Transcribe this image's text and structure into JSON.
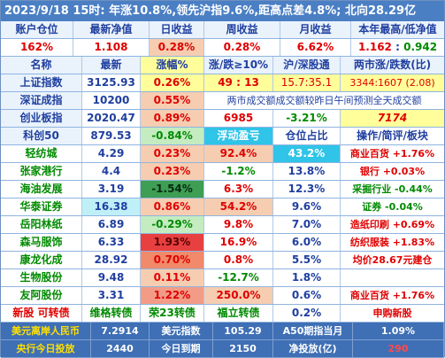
{
  "title": "2023/9/18  15时: 年涨10.8%,领先沪指9.6%,距高点差4.8%; 北向28.29亿",
  "account": {
    "headers": [
      "账户仓位",
      "最新净值",
      "日收益",
      "周收益",
      "月收益",
      "本年最高/低净值"
    ],
    "position": "162%",
    "nav": "1.108",
    "day": "0.28%",
    "week": "0.28%",
    "month": "6.62%",
    "yearhi": "1.162",
    "sep": ":",
    "yearlo": "0.942"
  },
  "index_header": {
    "name": "名称",
    "latest": "最新",
    "pct": "涨幅%",
    "ge10": "涨/跌≥10%",
    "hs": "沪/深股通",
    "twoCity": "两市涨/跌数(比)"
  },
  "sh": {
    "name": "上证指数",
    "latest": "3125.93",
    "pct": "0.26%",
    "ge10_a": "49",
    "ge10_sep": ":",
    "ge10_b": "13",
    "hs": "15.7:35.1",
    "ratio": "3344:1607 (2.08)"
  },
  "sz": {
    "name": "深证成指",
    "latest": "10200",
    "pct": "0.55%",
    "note": "两市成交额成交额较昨日午间预测全天成交额"
  },
  "cy": {
    "name": "创业板指",
    "latest": "2020.47",
    "pct": "0.89%",
    "vol": "6985",
    "chg": "-3.21%",
    "pred": "7174"
  },
  "kc": {
    "name": "科创50",
    "latest": "879.53",
    "pct": "-0.84%"
  },
  "stock_header": {
    "float": "浮动盈亏",
    "weight": "仓位占比",
    "op": "操作/简评/板块"
  },
  "stocks": [
    {
      "name": "轻纺城",
      "price": "4.29",
      "pct": "0.23%",
      "float": "92.4%",
      "weight": "43.2%",
      "note": "商业百货 +1.76%"
    },
    {
      "name": "张家港行",
      "price": "4.4",
      "pct": "0.23%",
      "float": "-1.2%",
      "weight": "13.8%",
      "note": "银行 +0.03%"
    },
    {
      "name": "海油发展",
      "price": "3.19",
      "pct": "-1.54%",
      "float": "6.3%",
      "weight": "12.3%",
      "note": "采掘行业 -0.44%"
    },
    {
      "name": "华泰证券",
      "price": "16.38",
      "pct": "0.86%",
      "float": "54.2%",
      "weight": "9.6%",
      "note": "证券 -0.04%"
    },
    {
      "name": "岳阳林纸",
      "price": "6.89",
      "pct": "-0.29%",
      "float": "9.8%",
      "weight": "7.0%",
      "note": "造纸印刷 +0.69%"
    },
    {
      "name": "森马服饰",
      "price": "6.33",
      "pct": "1.93%",
      "float": "16.9%",
      "weight": "6.0%",
      "note": "纺织服装 +1.83%"
    },
    {
      "name": "康龙化成",
      "price": "28.92",
      "pct": "0.70%",
      "float": "0.8%",
      "weight": "5.5%",
      "note": "均价28.67元建仓"
    },
    {
      "name": "生物股份",
      "price": "9.48",
      "pct": "0.11%",
      "float": "-12.7%",
      "weight": "1.8%",
      "note": ""
    },
    {
      "name": "友阿股份",
      "price": "3.31",
      "pct": "1.22%",
      "float": "250.0%",
      "weight": "0.6%",
      "note": "商业百货 +1.76%"
    }
  ],
  "new_row": {
    "name": "新股 可转债",
    "a": "维格转债",
    "b": "荣23转债",
    "c": "福立转债",
    "weight": "0.2%",
    "note": "申购新股"
  },
  "bottom1": {
    "l1": "美元离岸人民币",
    "v1": "7.2914",
    "l2": "美元指数",
    "v2": "105.29",
    "l3": "A50期指当月",
    "v3": "1.09%"
  },
  "bottom2": {
    "l1": "央行今日投放",
    "v1": "2440",
    "l2": "今日到期",
    "v2": "2150",
    "l3": "净投放(亿)",
    "v3": "290"
  }
}
